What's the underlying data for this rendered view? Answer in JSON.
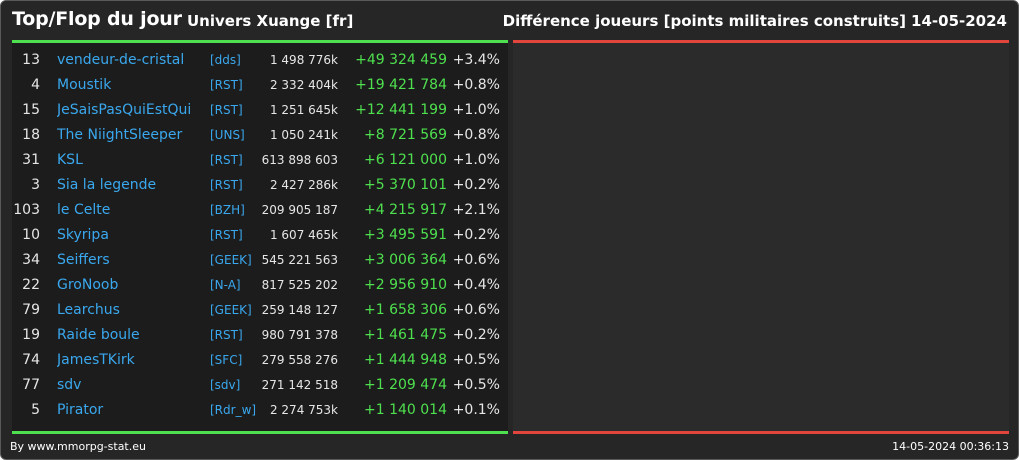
{
  "header": {
    "title": "Top/Flop du jour",
    "universe": "Univers Xuange [fr]",
    "metric": "Différence joueurs [points militaires construits]",
    "date": "14-05-2024"
  },
  "footer": {
    "credit": "By www.mmorpg-stat.eu",
    "timestamp": "14-05-2024 00:36:13"
  },
  "colors": {
    "background": "#262626",
    "panel": "#1c1c1c",
    "positive": "#4ee04e",
    "negative": "#e2453c",
    "link": "#3aa8ee"
  },
  "top_rows": [
    {
      "rank": "13",
      "player": "vendeur-de-cristal",
      "alliance": "[dds]",
      "points": "1 498 776k",
      "diff": "+49 324 459",
      "pct": "+3.4%"
    },
    {
      "rank": "4",
      "player": "Moustik",
      "alliance": "[RST]",
      "points": "2 332 404k",
      "diff": "+19 421 784",
      "pct": "+0.8%"
    },
    {
      "rank": "15",
      "player": "JeSaisPasQuiEstQui",
      "alliance": "[RST]",
      "points": "1 251 645k",
      "diff": "+12 441 199",
      "pct": "+1.0%"
    },
    {
      "rank": "18",
      "player": "The NiightSleeper",
      "alliance": "[UNS]",
      "points": "1 050 241k",
      "diff": "+8 721 569",
      "pct": "+0.8%"
    },
    {
      "rank": "31",
      "player": "KSL",
      "alliance": "[RST]",
      "points": "613 898 603",
      "diff": "+6 121 000",
      "pct": "+1.0%"
    },
    {
      "rank": "3",
      "player": "Sia la legende",
      "alliance": "[RST]",
      "points": "2 427 286k",
      "diff": "+5 370 101",
      "pct": "+0.2%"
    },
    {
      "rank": "103",
      "player": "le Celte",
      "alliance": "[BZH]",
      "points": "209 905 187",
      "diff": "+4 215 917",
      "pct": "+2.1%"
    },
    {
      "rank": "10",
      "player": "Skyripa",
      "alliance": "[RST]",
      "points": "1 607 465k",
      "diff": "+3 495 591",
      "pct": "+0.2%"
    },
    {
      "rank": "34",
      "player": "Seiffers",
      "alliance": "[GEEK]",
      "points": "545 221 563",
      "diff": "+3 006 364",
      "pct": "+0.6%"
    },
    {
      "rank": "22",
      "player": "GroNoob",
      "alliance": "[N-A]",
      "points": "817 525 202",
      "diff": "+2 956 910",
      "pct": "+0.4%"
    },
    {
      "rank": "79",
      "player": "Learchus",
      "alliance": "[GEEK]",
      "points": "259 148 127",
      "diff": "+1 658 306",
      "pct": "+0.6%"
    },
    {
      "rank": "19",
      "player": "Raide boule",
      "alliance": "[RST]",
      "points": "980 791 378",
      "diff": "+1 461 475",
      "pct": "+0.2%"
    },
    {
      "rank": "74",
      "player": "JamesTKirk",
      "alliance": "[SFC]",
      "points": "279 558 276",
      "diff": "+1 444 948",
      "pct": "+0.5%"
    },
    {
      "rank": "77",
      "player": "sdv",
      "alliance": "[sdv]",
      "points": "271 142 518",
      "diff": "+1 209 474",
      "pct": "+0.5%"
    },
    {
      "rank": "5",
      "player": "Pirator",
      "alliance": "[Rdr_w]",
      "points": "2 274 753k",
      "diff": "+1 140 014",
      "pct": "+0.1%"
    }
  ]
}
